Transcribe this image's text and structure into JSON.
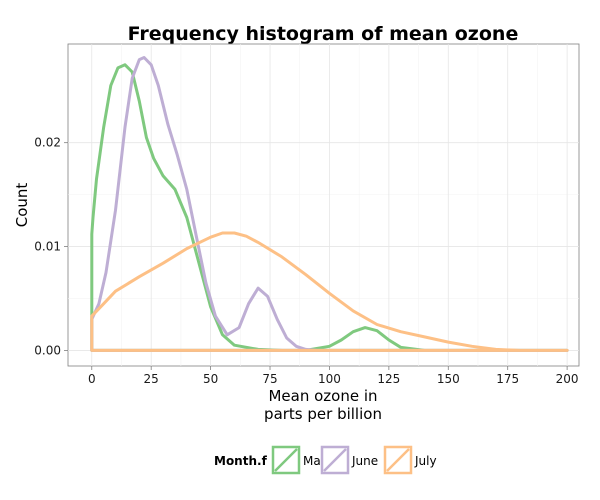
{
  "chart_data": {
    "type": "line",
    "title": "Frequency histogram of mean ozone",
    "xlabel_lines": [
      "Mean ozone in",
      "parts per billion"
    ],
    "ylabel": "Count",
    "xlim": [
      -10,
      205
    ],
    "ylim": [
      -0.0015,
      0.0295
    ],
    "x_ticks": [
      0,
      25,
      50,
      75,
      100,
      125,
      150,
      175,
      200
    ],
    "y_ticks": [
      0.0,
      0.01,
      0.02
    ],
    "y_tick_labels": [
      "0.00",
      "0.01",
      "0.02"
    ],
    "grid": true,
    "legend": {
      "title": "Month.f",
      "placement": "bottom",
      "items": [
        "May",
        "June",
        "July"
      ]
    },
    "series": [
      {
        "name": "May",
        "color": "#7fc97f",
        "x": [
          0,
          0,
          0.5,
          2,
          5,
          8,
          11,
          14,
          17,
          20,
          23,
          26,
          30,
          35,
          40,
          45,
          50,
          55,
          60,
          70,
          80,
          90,
          100,
          105,
          110,
          115,
          120,
          125,
          130,
          140,
          150,
          200,
          0
        ],
        "y": [
          0,
          0.0112,
          0.0128,
          0.0165,
          0.0215,
          0.0255,
          0.0272,
          0.0275,
          0.0268,
          0.024,
          0.0205,
          0.0185,
          0.0168,
          0.0155,
          0.0128,
          0.0085,
          0.0042,
          0.0015,
          0.0005,
          0.0001,
          0.0,
          0.0,
          0.0004,
          0.001,
          0.0018,
          0.0022,
          0.0019,
          0.001,
          0.0003,
          0.0,
          0.0,
          0.0,
          0.0
        ]
      },
      {
        "name": "June",
        "color": "#beaed4",
        "x": [
          0,
          0,
          3,
          6,
          10,
          14,
          17,
          20,
          22,
          25,
          28,
          32,
          36,
          40,
          44,
          48,
          52,
          57,
          62,
          66,
          70,
          74,
          78,
          82,
          86,
          90,
          95,
          100,
          120,
          200,
          0
        ],
        "y": [
          0,
          0.003,
          0.0045,
          0.0075,
          0.0135,
          0.0215,
          0.0262,
          0.028,
          0.0282,
          0.0275,
          0.0255,
          0.0218,
          0.0188,
          0.0155,
          0.011,
          0.0065,
          0.0033,
          0.0015,
          0.0022,
          0.0045,
          0.006,
          0.0052,
          0.003,
          0.0012,
          0.0004,
          0.0001,
          0.0,
          0.0,
          0.0,
          0.0,
          0.0
        ]
      },
      {
        "name": "July",
        "color": "#fdc086",
        "x": [
          0,
          0,
          5,
          10,
          20,
          30,
          40,
          50,
          55,
          60,
          65,
          70,
          80,
          90,
          100,
          110,
          120,
          130,
          140,
          150,
          160,
          170,
          180,
          200,
          0
        ],
        "y": [
          0,
          0.0033,
          0.0045,
          0.0057,
          0.0071,
          0.0084,
          0.0098,
          0.0109,
          0.0113,
          0.0113,
          0.011,
          0.0104,
          0.009,
          0.0073,
          0.0055,
          0.0038,
          0.0025,
          0.0018,
          0.0013,
          0.0008,
          0.0004,
          0.0001,
          0.0,
          0.0,
          0.0
        ]
      }
    ]
  }
}
